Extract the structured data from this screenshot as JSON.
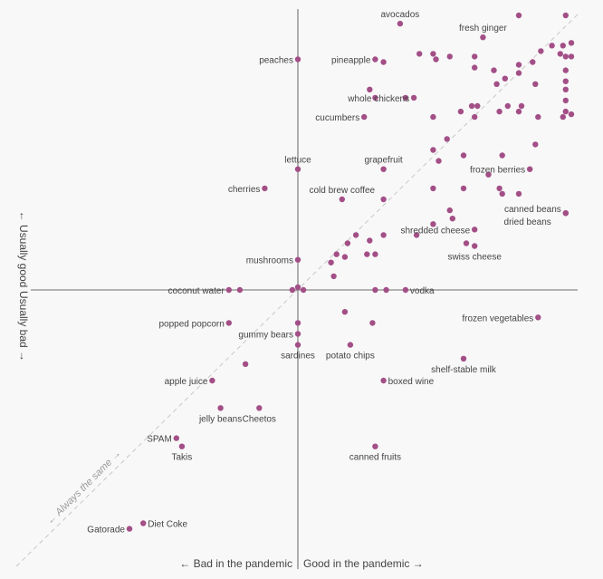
{
  "chart_data": {
    "type": "scatter",
    "title": "",
    "xlabel_left": "← Bad in the pandemic",
    "xlabel_right": "Good in the pandemic →",
    "ylabel_top": "← Usually good",
    "ylabel_bottom": "Usually bad →",
    "diagonal_label": "← Always the same →",
    "grid": false,
    "xlim": [
      -100,
      100
    ],
    "ylim": [
      -100,
      100
    ],
    "point_color": "#a34f87",
    "axis_color": "#888888",
    "diagonal_color": "#c8c8c8",
    "points": [
      {
        "x": 37,
        "y": 97,
        "label": "avocados",
        "side": "above"
      },
      {
        "x": 67,
        "y": 92,
        "label": "fresh ginger",
        "side": "above"
      },
      {
        "x": 0,
        "y": 84,
        "label": "peaches",
        "side": "left"
      },
      {
        "x": 28,
        "y": 84,
        "label": "pineapple",
        "side": "left"
      },
      {
        "x": 42,
        "y": 70,
        "label": "whole chickens",
        "side": "left"
      },
      {
        "x": 24,
        "y": 63,
        "label": "cucumbers",
        "side": "left"
      },
      {
        "x": 0,
        "y": 44,
        "label": "lettuce",
        "side": "above"
      },
      {
        "x": 31,
        "y": 44,
        "label": "grapefruit",
        "side": "above"
      },
      {
        "x": 84,
        "y": 44,
        "label": "frozen berries",
        "side": "left"
      },
      {
        "x": -12,
        "y": 37,
        "label": "cherries",
        "side": "left"
      },
      {
        "x": 16,
        "y": 33,
        "label": "cold brew coffee",
        "side": "above"
      },
      {
        "x": 97,
        "y": 28,
        "label": "canned beans",
        "side": "left-up"
      },
      {
        "x": 97,
        "y": 28,
        "label": "dried beans",
        "side": "left-down"
      },
      {
        "x": 64,
        "y": 22,
        "label": "shredded cheese",
        "side": "left"
      },
      {
        "x": 64,
        "y": 16,
        "label": "swiss cheese",
        "side": "below"
      },
      {
        "x": 0,
        "y": 11,
        "label": "mushrooms",
        "side": "left"
      },
      {
        "x": -25,
        "y": 0,
        "label": "coconut water",
        "side": "left"
      },
      {
        "x": 39,
        "y": 0,
        "label": "vodka",
        "side": "right"
      },
      {
        "x": 87,
        "y": -10,
        "label": "frozen vegetables",
        "side": "left"
      },
      {
        "x": -25,
        "y": -12,
        "label": "popped popcorn",
        "side": "left"
      },
      {
        "x": 0,
        "y": -16,
        "label": "gummy bears",
        "side": "left"
      },
      {
        "x": 0,
        "y": -20,
        "label": "sardines",
        "side": "below"
      },
      {
        "x": 19,
        "y": -20,
        "label": "potato chips",
        "side": "below"
      },
      {
        "x": 60,
        "y": -25,
        "label": "shelf-stable milk",
        "side": "below"
      },
      {
        "x": 31,
        "y": -33,
        "label": "boxed wine",
        "side": "right"
      },
      {
        "x": -31,
        "y": -33,
        "label": "apple juice",
        "side": "left"
      },
      {
        "x": -28,
        "y": -43,
        "label": "jelly beans",
        "side": "below"
      },
      {
        "x": -14,
        "y": -43,
        "label": "Cheetos",
        "side": "below"
      },
      {
        "x": -44,
        "y": -54,
        "label": "SPAM",
        "side": "left"
      },
      {
        "x": -42,
        "y": -57,
        "label": "Takis",
        "side": "below"
      },
      {
        "x": 28,
        "y": -57,
        "label": "canned fruits",
        "side": "below"
      },
      {
        "x": -56,
        "y": -85,
        "label": "Diet Coke",
        "side": "right"
      },
      {
        "x": -61,
        "y": -87,
        "label": "Gatorade",
        "side": "left"
      },
      {
        "x": 80,
        "y": 100
      },
      {
        "x": 97,
        "y": 100
      },
      {
        "x": 88,
        "y": 87
      },
      {
        "x": 92,
        "y": 89
      },
      {
        "x": 96,
        "y": 89
      },
      {
        "x": 99,
        "y": 90
      },
      {
        "x": 95,
        "y": 86
      },
      {
        "x": 97,
        "y": 85
      },
      {
        "x": 99,
        "y": 85
      },
      {
        "x": 85,
        "y": 83
      },
      {
        "x": 80,
        "y": 82
      },
      {
        "x": 64,
        "y": 85
      },
      {
        "x": 55,
        "y": 85
      },
      {
        "x": 44,
        "y": 86
      },
      {
        "x": 64,
        "y": 81
      },
      {
        "x": 71,
        "y": 80
      },
      {
        "x": 80,
        "y": 79
      },
      {
        "x": 97,
        "y": 80
      },
      {
        "x": 97,
        "y": 76
      },
      {
        "x": 75,
        "y": 77
      },
      {
        "x": 72,
        "y": 75
      },
      {
        "x": 86,
        "y": 75
      },
      {
        "x": 97,
        "y": 73
      },
      {
        "x": 97,
        "y": 69
      },
      {
        "x": 97,
        "y": 65
      },
      {
        "x": 49,
        "y": 86
      },
      {
        "x": 31,
        "y": 83
      },
      {
        "x": 50,
        "y": 84
      },
      {
        "x": 26,
        "y": 73
      },
      {
        "x": 39,
        "y": 70
      },
      {
        "x": 28,
        "y": 70
      },
      {
        "x": 49,
        "y": 63
      },
      {
        "x": 64,
        "y": 63
      },
      {
        "x": 73,
        "y": 65
      },
      {
        "x": 80,
        "y": 65
      },
      {
        "x": 87,
        "y": 63
      },
      {
        "x": 96,
        "y": 63
      },
      {
        "x": 99,
        "y": 64
      },
      {
        "x": 76,
        "y": 67
      },
      {
        "x": 81,
        "y": 67
      },
      {
        "x": 65,
        "y": 67
      },
      {
        "x": 63,
        "y": 67
      },
      {
        "x": 59,
        "y": 65
      },
      {
        "x": 54,
        "y": 55
      },
      {
        "x": 49,
        "y": 51
      },
      {
        "x": 86,
        "y": 53
      },
      {
        "x": 51,
        "y": 47
      },
      {
        "x": 60,
        "y": 49
      },
      {
        "x": 74,
        "y": 49
      },
      {
        "x": 69,
        "y": 42
      },
      {
        "x": 49,
        "y": 37
      },
      {
        "x": 60,
        "y": 37
      },
      {
        "x": 73,
        "y": 37
      },
      {
        "x": 80,
        "y": 35
      },
      {
        "x": 74,
        "y": 35
      },
      {
        "x": 31,
        "y": 33
      },
      {
        "x": 55,
        "y": 29
      },
      {
        "x": 56,
        "y": 26
      },
      {
        "x": 49,
        "y": 24
      },
      {
        "x": 31,
        "y": 20
      },
      {
        "x": 43,
        "y": 20
      },
      {
        "x": 21,
        "y": 20
      },
      {
        "x": 18,
        "y": 17
      },
      {
        "x": 26,
        "y": 18
      },
      {
        "x": 25,
        "y": 13
      },
      {
        "x": 28,
        "y": 13
      },
      {
        "x": 17,
        "y": 12
      },
      {
        "x": 14,
        "y": 13
      },
      {
        "x": 12,
        "y": 10
      },
      {
        "x": 61,
        "y": 17
      },
      {
        "x": 13,
        "y": 5
      },
      {
        "x": 28,
        "y": 0
      },
      {
        "x": 32,
        "y": 0
      },
      {
        "x": -21,
        "y": 0
      },
      {
        "x": -2,
        "y": 0
      },
      {
        "x": 2,
        "y": 0
      },
      {
        "x": 0,
        "y": 1
      },
      {
        "x": 17,
        "y": -8
      },
      {
        "x": 27,
        "y": -12
      },
      {
        "x": 0,
        "y": -12
      },
      {
        "x": -19,
        "y": -27
      }
    ]
  }
}
